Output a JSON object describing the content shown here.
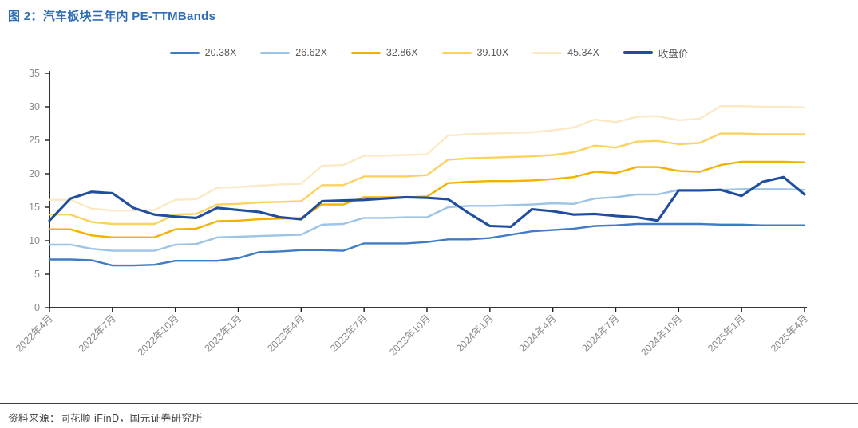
{
  "header": {
    "title": "图 2：汽车板块三年内 PE-TTMBands"
  },
  "footer": {
    "source": "资料来源：同花顺 iFinD，国元证券研究所"
  },
  "colors": {
    "title_blue": "#2E6DB5",
    "axis": "#1a1a1a",
    "tick_label_gray": "#8a8a8a",
    "legend_label_gray": "#595959"
  },
  "chart_data": {
    "type": "line",
    "title": "汽车板块三年内 PE-TTMBands",
    "xlabel": "",
    "ylabel": "",
    "ylim": [
      0,
      35
    ],
    "yticks": [
      0,
      5,
      10,
      15,
      20,
      25,
      30,
      35
    ],
    "grid": false,
    "legend_position": "top",
    "x": [
      "2022-04",
      "2022-05",
      "2022-06",
      "2022-07",
      "2022-08",
      "2022-09",
      "2022-10",
      "2022-11",
      "2022-12",
      "2023-01",
      "2023-02",
      "2023-03",
      "2023-04",
      "2023-05",
      "2023-06",
      "2023-07",
      "2023-08",
      "2023-09",
      "2023-10",
      "2023-11",
      "2023-12",
      "2024-01",
      "2024-02",
      "2024-03",
      "2024-04",
      "2024-05",
      "2024-06",
      "2024-07",
      "2024-08",
      "2024-09",
      "2024-10",
      "2024-11",
      "2024-12",
      "2025-01",
      "2025-02",
      "2025-03",
      "2025-04"
    ],
    "x_tick_every": 3,
    "x_tick_labels": [
      "2022年4月",
      "2022年7月",
      "2022年10月",
      "2023年1月",
      "2023年4月",
      "2023年7月",
      "2023年10月",
      "2024年1月",
      "2024年4月",
      "2024年7月",
      "2024年10月",
      "2025年1月",
      "2025年4月"
    ],
    "series": [
      {
        "name": "20.38X",
        "color": "#3E7CC5",
        "width": 2.4,
        "values": [
          7.2,
          7.2,
          7.1,
          6.3,
          6.3,
          6.4,
          7.0,
          7.0,
          7.0,
          7.4,
          8.3,
          8.4,
          8.6,
          8.6,
          8.5,
          9.6,
          9.6,
          9.6,
          9.8,
          10.2,
          10.2,
          10.4,
          10.9,
          11.4,
          11.6,
          11.8,
          12.2,
          12.3,
          12.5,
          12.5,
          12.5,
          12.5,
          12.4,
          12.4,
          12.3,
          12.3,
          12.3
        ]
      },
      {
        "name": "26.62X",
        "color": "#9DC3E6",
        "width": 2.4,
        "values": [
          9.4,
          9.4,
          8.8,
          8.5,
          8.5,
          8.5,
          9.4,
          9.5,
          10.5,
          10.6,
          10.7,
          10.8,
          10.9,
          12.4,
          12.5,
          13.4,
          13.4,
          13.5,
          13.5,
          15.0,
          15.2,
          15.2,
          15.3,
          15.4,
          15.6,
          15.5,
          16.3,
          16.5,
          16.9,
          16.9,
          17.6,
          17.6,
          17.6,
          17.7,
          17.7,
          17.7,
          17.6
        ]
      },
      {
        "name": "32.86X",
        "color": "#F2B200",
        "width": 2.4,
        "values": [
          11.7,
          11.7,
          10.8,
          10.5,
          10.5,
          10.5,
          11.7,
          11.8,
          12.9,
          13.0,
          13.2,
          13.3,
          13.4,
          15.4,
          15.4,
          16.5,
          16.5,
          16.5,
          16.6,
          18.6,
          18.8,
          18.9,
          18.9,
          19.0,
          19.2,
          19.5,
          20.3,
          20.1,
          21.0,
          21.0,
          20.4,
          20.3,
          21.3,
          21.8,
          21.8,
          21.8,
          21.7
        ]
      },
      {
        "name": "39.10X",
        "color": "#FBD25F",
        "width": 2.4,
        "values": [
          13.9,
          13.9,
          12.8,
          12.5,
          12.5,
          12.5,
          13.9,
          14.0,
          15.4,
          15.5,
          15.7,
          15.8,
          15.9,
          18.3,
          18.3,
          19.6,
          19.6,
          19.6,
          19.8,
          22.1,
          22.3,
          22.4,
          22.5,
          22.6,
          22.8,
          23.2,
          24.2,
          23.9,
          24.8,
          24.9,
          24.4,
          24.6,
          26.0,
          26.0,
          25.9,
          25.9,
          25.9
        ]
      },
      {
        "name": "45.34X",
        "color": "#FBE9C5",
        "width": 2.4,
        "values": [
          16.1,
          16.1,
          14.8,
          14.5,
          14.5,
          14.6,
          16.1,
          16.2,
          17.9,
          18.0,
          18.2,
          18.4,
          18.5,
          21.2,
          21.3,
          22.7,
          22.7,
          22.8,
          22.9,
          25.7,
          25.9,
          26.0,
          26.1,
          26.2,
          26.5,
          26.9,
          28.1,
          27.7,
          28.5,
          28.6,
          28.0,
          28.2,
          30.1,
          30.1,
          30.0,
          30.0,
          29.9
        ]
      },
      {
        "name": "收盘价",
        "color": "#1F4E9E",
        "width": 3.1,
        "values": [
          13.0,
          16.3,
          17.3,
          17.1,
          14.9,
          13.9,
          13.6,
          13.4,
          14.9,
          14.6,
          14.3,
          13.5,
          13.2,
          15.9,
          16.0,
          16.1,
          16.3,
          16.5,
          16.4,
          16.2,
          14.1,
          12.2,
          12.1,
          14.7,
          14.4,
          13.9,
          14.0,
          13.7,
          13.5,
          13.0,
          17.5,
          17.5,
          17.6,
          16.7,
          18.8,
          19.5,
          16.9
        ]
      }
    ]
  }
}
